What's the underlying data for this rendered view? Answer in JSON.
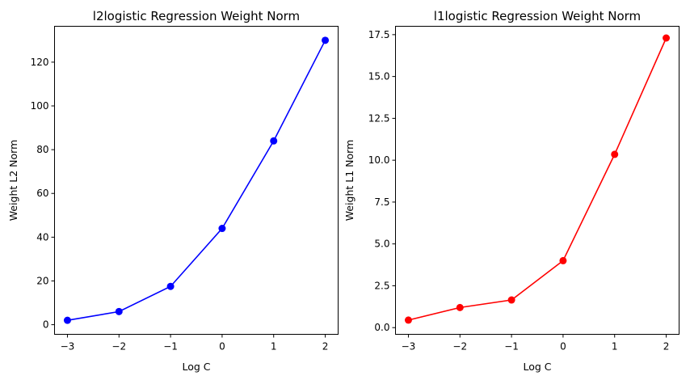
{
  "chart_data": [
    {
      "type": "line",
      "title": "l2logistic Regression Weight Norm",
      "xlabel": "Log C",
      "ylabel": "Weight L2 Norm",
      "x": [
        -3,
        -2,
        -1,
        0,
        1,
        2
      ],
      "series": [
        {
          "values": [
            2,
            6,
            17.5,
            44,
            84,
            130
          ],
          "color": "#0000ff",
          "marker": "circle"
        }
      ],
      "xlim": [
        -3.25,
        2.25
      ],
      "ylim": [
        -4.4,
        136.4
      ],
      "xticks": [
        -3,
        -2,
        -1,
        0,
        1,
        2
      ],
      "xtick_labels": [
        "−3",
        "−2",
        "−1",
        "0",
        "1",
        "2"
      ],
      "yticks": [
        0,
        20,
        40,
        60,
        80,
        100,
        120
      ],
      "ytick_labels": [
        "0",
        "20",
        "40",
        "60",
        "80",
        "100",
        "120"
      ],
      "grid": false
    },
    {
      "type": "line",
      "title": "l1logistic Regression Weight Norm",
      "xlabel": "Log C",
      "ylabel": "Weight L1 Norm",
      "x": [
        -3,
        -2,
        -1,
        0,
        1,
        2
      ],
      "series": [
        {
          "values": [
            0.45,
            1.2,
            1.65,
            4.0,
            10.35,
            17.3
          ],
          "color": "#ff0000",
          "marker": "circle"
        }
      ],
      "xlim": [
        -3.25,
        2.25
      ],
      "ylim": [
        -0.4,
        18.0
      ],
      "xticks": [
        -3,
        -2,
        -1,
        0,
        1,
        2
      ],
      "xtick_labels": [
        "−3",
        "−2",
        "−1",
        "0",
        "1",
        "2"
      ],
      "yticks": [
        0.0,
        2.5,
        5.0,
        7.5,
        10.0,
        12.5,
        15.0,
        17.5
      ],
      "ytick_labels": [
        "0.0",
        "2.5",
        "5.0",
        "7.5",
        "10.0",
        "12.5",
        "15.0",
        "17.5"
      ],
      "grid": false
    }
  ]
}
